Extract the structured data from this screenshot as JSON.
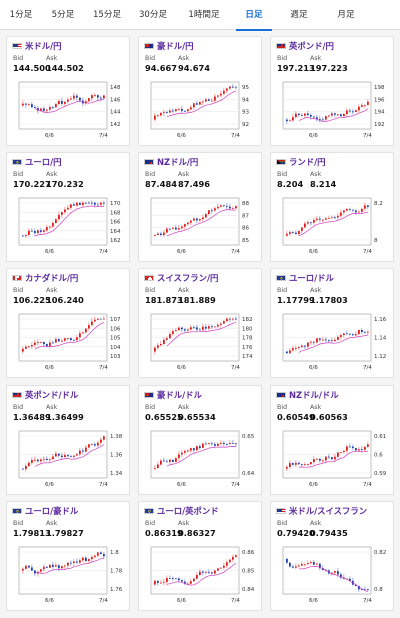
{
  "tabs": [
    {
      "label": "1分足",
      "active": false
    },
    {
      "label": "5分足",
      "active": false
    },
    {
      "label": "15分足",
      "active": false
    },
    {
      "label": "30分足",
      "active": false
    },
    {
      "label": "1時間足",
      "active": false
    },
    {
      "label": "日足",
      "active": true
    },
    {
      "label": "週足",
      "active": false
    },
    {
      "label": "月足",
      "active": false
    }
  ],
  "labels": {
    "bid": "Bid",
    "ask": "Ask"
  },
  "colors": {
    "up": "#e21b1b",
    "down": "#1d3bb3",
    "ma": "#cf3fc0",
    "accent": "#1a6fd6",
    "title": "#5b2aa0"
  },
  "pairs": [
    {
      "name": "米ドル/円",
      "flag": "us",
      "bid": "144.500",
      "ask": "144.502",
      "yticks": [
        "148",
        "146",
        "144",
        "142"
      ],
      "xticks": [
        "6/6",
        "7/4"
      ],
      "trend": "flat"
    },
    {
      "name": "豪ドル/円",
      "flag": "au",
      "bid": "94.667",
      "ask": "94.674",
      "yticks": [
        "95",
        "94",
        "93",
        "92"
      ],
      "xticks": [
        "6/6",
        "7/4"
      ],
      "trend": "up"
    },
    {
      "name": "英ポンド/円",
      "flag": "gb",
      "bid": "197.213",
      "ask": "197.223",
      "yticks": [
        "198",
        "196",
        "194",
        "192"
      ],
      "xticks": [
        "6/6",
        "7/4"
      ],
      "trend": "up"
    },
    {
      "name": "ユーロ/円",
      "flag": "eu",
      "bid": "170.227",
      "ask": "170.232",
      "yticks": [
        "170",
        "168",
        "166",
        "164",
        "162"
      ],
      "xticks": [
        "6/6",
        "7/4"
      ],
      "trend": "up"
    },
    {
      "name": "NZドル/円",
      "flag": "nz",
      "bid": "87.484",
      "ask": "87.496",
      "yticks": [
        "88",
        "87",
        "86",
        "85"
      ],
      "xticks": [
        "6/6",
        "7/4"
      ],
      "trend": "up"
    },
    {
      "name": "ランド/円",
      "flag": "za",
      "bid": "8.204",
      "ask": "8.214",
      "yticks": [
        "8.2",
        "8"
      ],
      "xticks": [
        "6/6",
        "7/4"
      ],
      "trend": "up"
    },
    {
      "name": "カナダドル/円",
      "flag": "ca",
      "bid": "106.225",
      "ask": "106.240",
      "yticks": [
        "107",
        "106",
        "105",
        "104",
        "103"
      ],
      "xticks": [
        "6/6",
        "7/4"
      ],
      "trend": "up"
    },
    {
      "name": "スイスフラン/円",
      "flag": "ch",
      "bid": "181.873",
      "ask": "181.889",
      "yticks": [
        "182",
        "180",
        "178",
        "176",
        "174"
      ],
      "xticks": [
        "6/6",
        "7/4"
      ],
      "trend": "up"
    },
    {
      "name": "ユーロ/ドル",
      "flag": "eu",
      "bid": "1.17799",
      "ask": "1.17803",
      "yticks": [
        "1.16",
        "1.14",
        "1.12"
      ],
      "xticks": [
        "6/6",
        "7/4"
      ],
      "trend": "up"
    },
    {
      "name": "英ポンド/ドル",
      "flag": "gb",
      "bid": "1.36489",
      "ask": "1.36499",
      "yticks": [
        "1.38",
        "1.36",
        "1.34"
      ],
      "xticks": [
        "6/6",
        "7/4"
      ],
      "trend": "up"
    },
    {
      "name": "豪ドル/ドル",
      "flag": "au",
      "bid": "0.65525",
      "ask": "0.65534",
      "yticks": [
        "0.65",
        "0.64"
      ],
      "xticks": [
        "6/6",
        "7/4"
      ],
      "trend": "up"
    },
    {
      "name": "NZドル/ドル",
      "flag": "nz",
      "bid": "0.60549",
      "ask": "0.60563",
      "yticks": [
        "0.61",
        "0.6",
        "0.59"
      ],
      "xticks": [
        "6/6",
        "7/4"
      ],
      "trend": "up"
    },
    {
      "name": "ユーロ/豪ドル",
      "flag": "eu",
      "bid": "1.79813",
      "ask": "1.79827",
      "yticks": [
        "1.8",
        "1.78",
        "1.76"
      ],
      "xticks": [
        "6/6",
        "7/4"
      ],
      "trend": "flat"
    },
    {
      "name": "ユーロ/英ポンド",
      "flag": "eu",
      "bid": "0.86319",
      "ask": "0.86327",
      "yticks": [
        "0.86",
        "0.85",
        "0.84"
      ],
      "xticks": [
        "6/6",
        "7/4"
      ],
      "trend": "up"
    },
    {
      "name": "米ドル/スイスフラン",
      "flag": "us",
      "bid": "0.79420",
      "ask": "0.79435",
      "yticks": [
        "0.82",
        "0.8"
      ],
      "xticks": [
        "6/6",
        "7/4"
      ],
      "trend": "down"
    }
  ]
}
